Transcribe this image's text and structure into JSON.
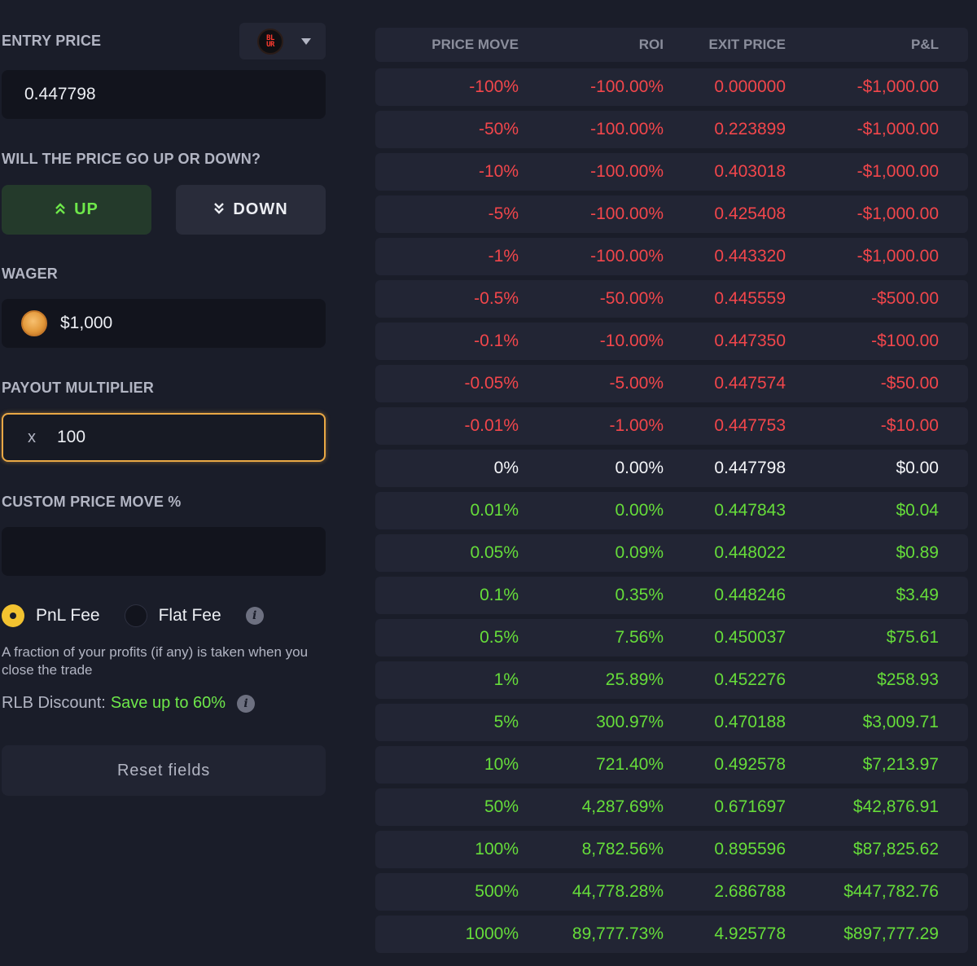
{
  "entry_price": {
    "label": "ENTRY PRICE",
    "value": "0.447798",
    "token_logo_text": "BL UR",
    "token_icon": "blur-token-icon",
    "dropdown_icon": "caret-down-icon"
  },
  "direction": {
    "label": "WILL THE PRICE GO UP OR DOWN?",
    "up_label": "UP",
    "down_label": "DOWN",
    "selected": "UP",
    "up_color": "#6ee84a"
  },
  "wager": {
    "label": "WAGER",
    "value": "$1,000",
    "icon": "coin-icon"
  },
  "payout_multiplier": {
    "label": "PAYOUT MULTIPLIER",
    "prefix": "x",
    "value": "100"
  },
  "custom_price_move": {
    "label": "CUSTOM PRICE MOVE %",
    "value": ""
  },
  "fee": {
    "option_pnl": "PnL Fee",
    "option_flat": "Flat Fee",
    "selected": "PnL Fee",
    "description": "A fraction of your profits (if any) is taken when you close the trade",
    "discount_label": "RLB Discount:",
    "discount_link": "Save up to 60%"
  },
  "reset_label": "Reset fields",
  "table": {
    "headers": [
      "PRICE MOVE",
      "ROI",
      "EXIT PRICE",
      "P&L"
    ],
    "rows": [
      {
        "move": "-100%",
        "roi": "-100.00%",
        "exit": "0.000000",
        "pnl": "-$1,000.00",
        "tone": "neg"
      },
      {
        "move": "-50%",
        "roi": "-100.00%",
        "exit": "0.223899",
        "pnl": "-$1,000.00",
        "tone": "neg"
      },
      {
        "move": "-10%",
        "roi": "-100.00%",
        "exit": "0.403018",
        "pnl": "-$1,000.00",
        "tone": "neg"
      },
      {
        "move": "-5%",
        "roi": "-100.00%",
        "exit": "0.425408",
        "pnl": "-$1,000.00",
        "tone": "neg"
      },
      {
        "move": "-1%",
        "roi": "-100.00%",
        "exit": "0.443320",
        "pnl": "-$1,000.00",
        "tone": "neg"
      },
      {
        "move": "-0.5%",
        "roi": "-50.00%",
        "exit": "0.445559",
        "pnl": "-$500.00",
        "tone": "neg"
      },
      {
        "move": "-0.1%",
        "roi": "-10.00%",
        "exit": "0.447350",
        "pnl": "-$100.00",
        "tone": "neg"
      },
      {
        "move": "-0.05%",
        "roi": "-5.00%",
        "exit": "0.447574",
        "pnl": "-$50.00",
        "tone": "neg"
      },
      {
        "move": "-0.01%",
        "roi": "-1.00%",
        "exit": "0.447753",
        "pnl": "-$10.00",
        "tone": "neg"
      },
      {
        "move": "0%",
        "roi": "0.00%",
        "exit": "0.447798",
        "pnl": "$0.00",
        "tone": "zero"
      },
      {
        "move": "0.01%",
        "roi": "0.00%",
        "exit": "0.447843",
        "pnl": "$0.04",
        "tone": "pos"
      },
      {
        "move": "0.05%",
        "roi": "0.09%",
        "exit": "0.448022",
        "pnl": "$0.89",
        "tone": "pos"
      },
      {
        "move": "0.1%",
        "roi": "0.35%",
        "exit": "0.448246",
        "pnl": "$3.49",
        "tone": "pos"
      },
      {
        "move": "0.5%",
        "roi": "7.56%",
        "exit": "0.450037",
        "pnl": "$75.61",
        "tone": "pos"
      },
      {
        "move": "1%",
        "roi": "25.89%",
        "exit": "0.452276",
        "pnl": "$258.93",
        "tone": "pos"
      },
      {
        "move": "5%",
        "roi": "300.97%",
        "exit": "0.470188",
        "pnl": "$3,009.71",
        "tone": "pos"
      },
      {
        "move": "10%",
        "roi": "721.40%",
        "exit": "0.492578",
        "pnl": "$7,213.97",
        "tone": "pos"
      },
      {
        "move": "50%",
        "roi": "4,287.69%",
        "exit": "0.671697",
        "pnl": "$42,876.91",
        "tone": "pos"
      },
      {
        "move": "100%",
        "roi": "8,782.56%",
        "exit": "0.895596",
        "pnl": "$87,825.62",
        "tone": "pos"
      },
      {
        "move": "500%",
        "roi": "44,778.28%",
        "exit": "2.686788",
        "pnl": "$447,782.76",
        "tone": "pos"
      },
      {
        "move": "1000%",
        "roi": "89,777.73%",
        "exit": "4.925778",
        "pnl": "$897,777.29",
        "tone": "pos"
      }
    ]
  },
  "colors": {
    "background": "#1a1d29",
    "negative": "#f2464b",
    "positive": "#66dd3a",
    "accent_border": "#e9a845",
    "radio_selected": "#f2c230"
  }
}
